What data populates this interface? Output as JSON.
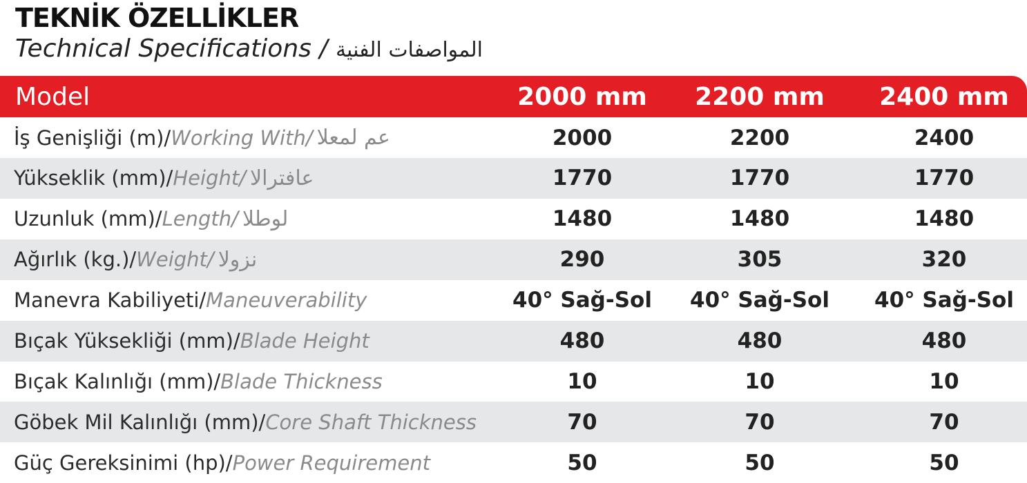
{
  "header": {
    "title": "TEKNİK ÖZELLİKLER",
    "subtitle": "Technical Specifications",
    "separator": "/",
    "subtitle_arabic": "المواصفات الفنية"
  },
  "table": {
    "columns": [
      "Model",
      "2000 mm",
      "2200 mm",
      "2400 mm"
    ],
    "rows": [
      {
        "label": "İş Genişliği (m)/",
        "english": "Working With/",
        "arabic": "عم لمعلا",
        "values": [
          2000,
          2200,
          2400
        ]
      },
      {
        "label": "Yükseklik (mm)/",
        "english": "Height/",
        "arabic": "عافترالا",
        "values": [
          1770,
          1770,
          1770
        ]
      },
      {
        "label": "Uzunluk (mm)/",
        "english": "Length/",
        "arabic": "لوطلا",
        "values": [
          1480,
          1480,
          1480
        ]
      },
      {
        "label": "Ağırlık (kg.)/",
        "english": "Weight/",
        "arabic": "نزولا",
        "values": [
          290,
          305,
          320
        ]
      },
      {
        "label": "Manevra Kabiliyeti/",
        "english": "Maneuverability",
        "values": [
          "40° Sağ-Sol",
          "40° Sağ-Sol",
          "40° Sağ-Sol"
        ]
      },
      {
        "label": "Bıçak Yüksekliği (mm)/",
        "english": "Blade Height",
        "values": [
          480,
          480,
          480
        ]
      },
      {
        "label": "Bıçak Kalınlığı (mm)/",
        "english": "Blade Thickness",
        "values": [
          10,
          10,
          10
        ]
      },
      {
        "label": "Göbek Mil Kalınlığı (mm)/",
        "english": "Core Shaft Thickness",
        "values": [
          70,
          70,
          70
        ]
      },
      {
        "label": "Güç Gereksinimi (hp)/",
        "english": "Power Requirement",
        "values": [
          50,
          50,
          50
        ]
      }
    ]
  }
}
